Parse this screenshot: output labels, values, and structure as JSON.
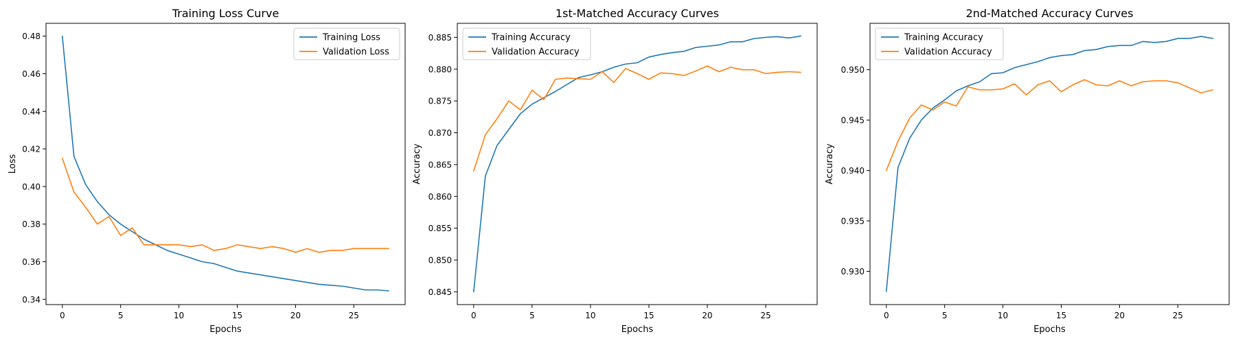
{
  "chart_data": [
    {
      "type": "line",
      "title": "Training Loss Curve",
      "xlabel": "Epochs",
      "ylabel": "Loss",
      "xlim": [
        -1.4,
        29.4
      ],
      "ylim": [
        0.3372,
        0.4868
      ],
      "xticks": [
        0,
        5,
        10,
        15,
        20,
        25
      ],
      "yticks": [
        0.34,
        0.36,
        0.38,
        0.4,
        0.42,
        0.44,
        0.46,
        0.48
      ],
      "ytick_decimals": 2,
      "legend_position": "upper right",
      "grid": false,
      "x": [
        0,
        1,
        2,
        3,
        4,
        5,
        6,
        7,
        8,
        9,
        10,
        11,
        12,
        13,
        14,
        15,
        16,
        17,
        18,
        19,
        20,
        21,
        22,
        23,
        24,
        25,
        26,
        27,
        28
      ],
      "series": [
        {
          "name": "Training Loss",
          "color": "#1f77b4",
          "values": [
            0.48,
            0.416,
            0.401,
            0.392,
            0.385,
            0.38,
            0.376,
            0.372,
            0.369,
            0.366,
            0.364,
            0.362,
            0.36,
            0.359,
            0.357,
            0.355,
            0.354,
            0.353,
            0.352,
            0.351,
            0.35,
            0.349,
            0.348,
            0.3475,
            0.347,
            0.346,
            0.345,
            0.345,
            0.3445
          ]
        },
        {
          "name": "Validation Loss",
          "color": "#ff7f0e",
          "values": [
            0.415,
            0.397,
            0.389,
            0.38,
            0.384,
            0.374,
            0.378,
            0.369,
            0.369,
            0.369,
            0.369,
            0.368,
            0.369,
            0.366,
            0.367,
            0.369,
            0.368,
            0.367,
            0.368,
            0.367,
            0.365,
            0.367,
            0.365,
            0.366,
            0.366,
            0.367,
            0.367,
            0.367,
            0.367
          ]
        }
      ]
    },
    {
      "type": "line",
      "title": "1st-Matched Accuracy Curves",
      "xlabel": "Epochs",
      "ylabel": "Accuracy",
      "xlim": [
        -1.4,
        29.4
      ],
      "ylim": [
        0.843,
        0.8872
      ],
      "xticks": [
        0,
        5,
        10,
        15,
        20,
        25
      ],
      "yticks": [
        0.845,
        0.85,
        0.855,
        0.86,
        0.865,
        0.87,
        0.875,
        0.88,
        0.885
      ],
      "ytick_decimals": 3,
      "legend_position": "upper left",
      "grid": false,
      "x": [
        0,
        1,
        2,
        3,
        4,
        5,
        6,
        7,
        8,
        9,
        10,
        11,
        12,
        13,
        14,
        15,
        16,
        17,
        18,
        19,
        20,
        21,
        22,
        23,
        24,
        25,
        26,
        27,
        28
      ],
      "series": [
        {
          "name": "Training Accuracy",
          "color": "#1f77b4",
          "values": [
            0.845,
            0.8632,
            0.868,
            0.8705,
            0.873,
            0.8745,
            0.8755,
            0.8765,
            0.8776,
            0.8787,
            0.8791,
            0.8796,
            0.8803,
            0.8808,
            0.881,
            0.8819,
            0.8823,
            0.8826,
            0.8828,
            0.8834,
            0.8836,
            0.8838,
            0.8843,
            0.8843,
            0.8848,
            0.885,
            0.8851,
            0.8849,
            0.8852
          ]
        },
        {
          "name": "Validation Accuracy",
          "color": "#ff7f0e",
          "values": [
            0.864,
            0.8697,
            0.8722,
            0.875,
            0.8736,
            0.8767,
            0.8752,
            0.8784,
            0.8786,
            0.8785,
            0.8784,
            0.8796,
            0.8779,
            0.8801,
            0.8793,
            0.8784,
            0.8794,
            0.8793,
            0.879,
            0.8797,
            0.8805,
            0.8796,
            0.8803,
            0.8799,
            0.8799,
            0.8793,
            0.8795,
            0.8796,
            0.8795
          ]
        }
      ]
    },
    {
      "type": "line",
      "title": "2nd-Matched Accuracy Curves",
      "xlabel": "Epochs",
      "ylabel": "Accuracy",
      "xlim": [
        -1.4,
        29.4
      ],
      "ylim": [
        0.9267,
        0.9546
      ],
      "xticks": [
        0,
        5,
        10,
        15,
        20,
        25
      ],
      "yticks": [
        0.93,
        0.935,
        0.94,
        0.945,
        0.95
      ],
      "ytick_decimals": 3,
      "legend_position": "upper left",
      "grid": false,
      "x": [
        0,
        1,
        2,
        3,
        4,
        5,
        6,
        7,
        8,
        9,
        10,
        11,
        12,
        13,
        14,
        15,
        16,
        17,
        18,
        19,
        20,
        21,
        22,
        23,
        24,
        25,
        26,
        27,
        28
      ],
      "series": [
        {
          "name": "Training Accuracy",
          "color": "#1f77b4",
          "values": [
            0.928,
            0.9403,
            0.9432,
            0.945,
            0.9462,
            0.947,
            0.9479,
            0.9484,
            0.9488,
            0.9496,
            0.9497,
            0.9502,
            0.9505,
            0.9508,
            0.9512,
            0.9514,
            0.9515,
            0.9519,
            0.952,
            0.9523,
            0.9524,
            0.9524,
            0.9528,
            0.9527,
            0.9528,
            0.9531,
            0.9531,
            0.9533,
            0.9531
          ]
        },
        {
          "name": "Validation Accuracy",
          "color": "#ff7f0e",
          "values": [
            0.94,
            0.9429,
            0.9452,
            0.9465,
            0.946,
            0.9468,
            0.9464,
            0.9483,
            0.948,
            0.948,
            0.9481,
            0.9486,
            0.9475,
            0.9485,
            0.9489,
            0.9478,
            0.9485,
            0.949,
            0.9485,
            0.9484,
            0.9489,
            0.9484,
            0.9488,
            0.9489,
            0.9489,
            0.9487,
            0.9482,
            0.9477,
            0.948
          ]
        }
      ]
    }
  ]
}
